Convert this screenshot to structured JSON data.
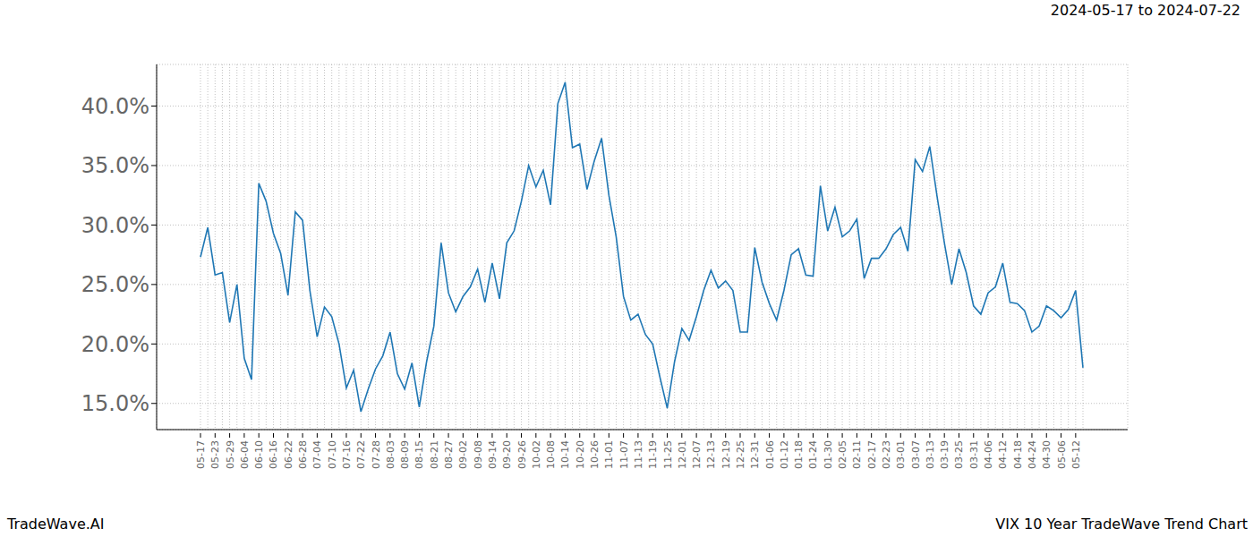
{
  "chart_data": {
    "type": "line",
    "title": "2024-05-17 to 2024-07-22",
    "annotations": [
      "TradeWave.AI",
      "VIX 10 Year TradeWave Trend Chart"
    ],
    "categories": [
      "05-17",
      null,
      "05-23",
      null,
      "05-29",
      null,
      "06-04",
      null,
      "06-10",
      null,
      "06-16",
      null,
      "06-22",
      null,
      "06-28",
      null,
      "07-04",
      null,
      "07-10",
      null,
      "07-16",
      null,
      "07-22",
      null,
      "07-28",
      null,
      "08-03",
      null,
      "08-09",
      null,
      "08-15",
      null,
      "08-21",
      null,
      "08-27",
      null,
      "09-02",
      null,
      "09-08",
      null,
      "09-14",
      null,
      "09-20",
      null,
      "09-26",
      null,
      "10-02",
      null,
      "10-08",
      null,
      "10-14",
      null,
      "10-20",
      null,
      "10-26",
      null,
      "11-01",
      null,
      "11-07",
      null,
      "11-13",
      null,
      "11-19",
      null,
      "11-25",
      null,
      "12-01",
      null,
      "12-07",
      null,
      "12-13",
      null,
      "12-19",
      null,
      "12-25",
      null,
      "12-31",
      null,
      "01-06",
      null,
      "01-12",
      null,
      "01-18",
      null,
      "01-24",
      null,
      "01-30",
      null,
      "02-05",
      null,
      "02-11",
      null,
      "02-17",
      null,
      "02-23",
      null,
      "03-01",
      null,
      "03-07",
      null,
      "03-13",
      null,
      "03-19",
      null,
      "03-25",
      null,
      "03-31",
      null,
      "04-06",
      null,
      "04-12",
      null,
      "04-18",
      null,
      "04-24",
      null,
      "04-30",
      null,
      "05-06",
      null,
      "05-12",
      null
    ],
    "values": [
      27.3,
      29.8,
      25.8,
      26.0,
      21.8,
      25.0,
      18.8,
      17.0,
      33.5,
      32.0,
      29.3,
      27.6,
      24.1,
      31.1,
      30.4,
      24.5,
      20.6,
      23.1,
      22.3,
      20.0,
      16.3,
      17.8,
      14.3,
      16.2,
      17.9,
      19.0,
      21.0,
      17.5,
      16.2,
      18.4,
      14.7,
      18.5,
      21.5,
      28.5,
      24.3,
      22.7,
      24.0,
      24.8,
      26.3,
      23.5,
      26.8,
      23.8,
      28.5,
      29.5,
      32.0,
      35.0,
      33.2,
      34.6,
      31.7,
      40.2,
      42.0,
      36.5,
      36.8,
      33.0,
      35.4,
      37.3,
      32.5,
      29.0,
      24.0,
      22.0,
      22.5,
      20.8,
      20.0,
      17.2,
      14.6,
      18.5,
      21.3,
      20.3,
      22.3,
      24.5,
      26.2,
      24.7,
      25.3,
      24.5,
      21.0,
      21.0,
      28.1,
      25.2,
      23.4,
      22.0,
      24.5,
      27.5,
      28.0,
      25.8,
      25.7,
      33.3,
      29.5,
      31.5,
      29.0,
      29.5,
      30.5,
      25.5,
      27.2,
      27.2,
      28.0,
      29.2,
      29.8,
      27.8,
      35.5,
      34.5,
      36.6,
      32.4,
      28.5,
      25.0,
      28.0,
      26.0,
      23.2,
      22.5,
      24.3,
      24.8,
      26.8,
      23.5,
      23.4,
      22.8,
      21.0,
      21.5,
      23.2,
      22.8,
      22.2,
      22.9,
      24.5,
      18.0
    ],
    "color": "#1f77b4",
    "shaded_range": [
      "05-17",
      "07-22"
    ],
    "ylim": [
      12.8,
      43.5
    ],
    "yticks": [
      {
        "value": 15,
        "label": "15.0%"
      },
      {
        "value": 20,
        "label": "20.0%"
      },
      {
        "value": 25,
        "label": "25.0%"
      },
      {
        "value": 30,
        "label": "30.0%"
      },
      {
        "value": 35,
        "label": "35.0%"
      },
      {
        "value": 40,
        "label": "40.0%"
      }
    ],
    "grid": true
  }
}
